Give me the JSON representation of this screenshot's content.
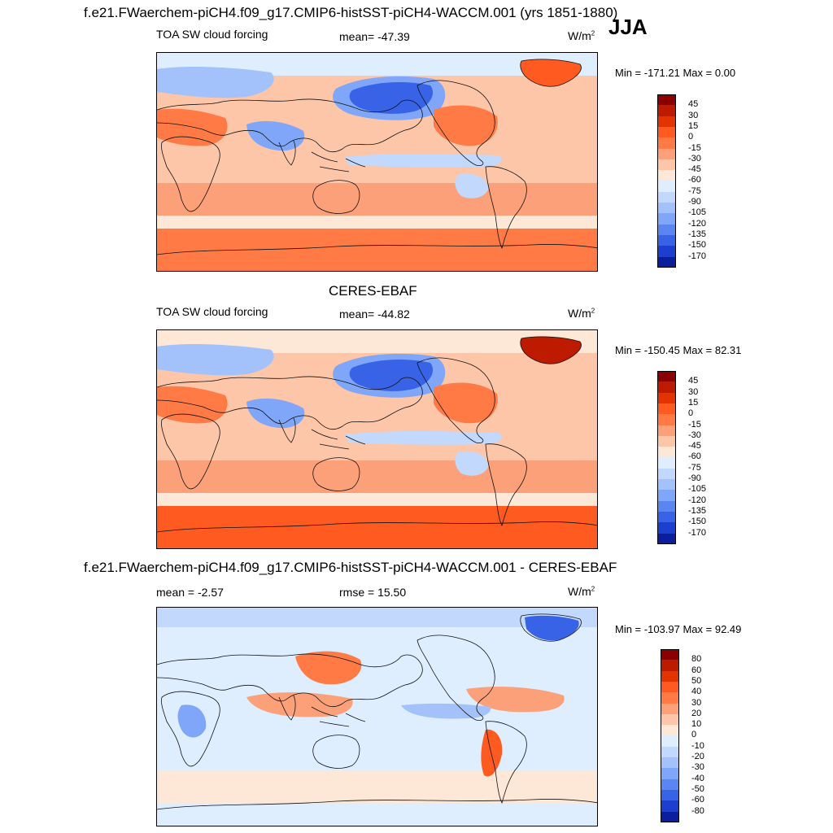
{
  "season": "JJA",
  "panels": [
    {
      "title": "f.e21.FWaerchem-piCH4.f09_g17.CMIP6-histSST-piCH4-WACCM.001 (yrs 1851-1880)",
      "left_label": "TOA SW cloud forcing",
      "center_label": "mean= -47.39",
      "units": "W/m",
      "units_exp": "2",
      "minmax": "Min = -171.21 Max =   0.00",
      "colorbar": {
        "labels": [
          "45",
          "30",
          "15",
          "0",
          "-15",
          "-30",
          "-45",
          "-60",
          "-75",
          "-90",
          "-105",
          "-120",
          "-135",
          "-150",
          "-170"
        ],
        "colors": [
          "#8b0000",
          "#bd1a00",
          "#e33300",
          "#ff5a1f",
          "#ff7a45",
          "#fca07a",
          "#fdc6a8",
          "#fde8d8",
          "#dfeeff",
          "#c2d9fd",
          "#a3c2fb",
          "#7fa6f8",
          "#5b86f2",
          "#3963e6",
          "#1c3fcf",
          "#0b1e9b"
        ]
      },
      "map_theme": "cloud"
    },
    {
      "title": "CERES-EBAF",
      "left_label": "TOA SW cloud forcing",
      "center_label": "mean= -44.82",
      "units": "W/m",
      "units_exp": "2",
      "minmax": "Min = -150.45 Max =  82.31",
      "colorbar": {
        "labels": [
          "45",
          "30",
          "15",
          "0",
          "-15",
          "-30",
          "-45",
          "-60",
          "-75",
          "-90",
          "-105",
          "-120",
          "-135",
          "-150",
          "-170"
        ],
        "colors": [
          "#8b0000",
          "#bd1a00",
          "#e33300",
          "#ff5a1f",
          "#ff7a45",
          "#fca07a",
          "#fdc6a8",
          "#fde8d8",
          "#dfeeff",
          "#c2d9fd",
          "#a3c2fb",
          "#7fa6f8",
          "#5b86f2",
          "#3963e6",
          "#1c3fcf",
          "#0b1e9b"
        ]
      },
      "map_theme": "cloud"
    },
    {
      "title": "f.e21.FWaerchem-piCH4.f09_g17.CMIP6-histSST-piCH4-WACCM.001 - CERES-EBAF",
      "left_label": "mean =  -2.57",
      "center_label": "rmse =  15.50",
      "units": "W/m",
      "units_exp": "2",
      "minmax": "Min = -103.97 Max =  92.49",
      "colorbar": {
        "labels": [
          "80",
          "60",
          "50",
          "40",
          "30",
          "20",
          "10",
          "0",
          "-10",
          "-20",
          "-30",
          "-40",
          "-50",
          "-60",
          "-80"
        ],
        "colors": [
          "#8b0000",
          "#bd1a00",
          "#e33300",
          "#ff5a1f",
          "#ff7a45",
          "#fca07a",
          "#fdc6a8",
          "#fde8d8",
          "#dfeeff",
          "#c2d9fd",
          "#a3c2fb",
          "#7fa6f8",
          "#5b86f2",
          "#3963e6",
          "#1c3fcf",
          "#0b1e9b"
        ]
      },
      "map_theme": "diff"
    }
  ]
}
